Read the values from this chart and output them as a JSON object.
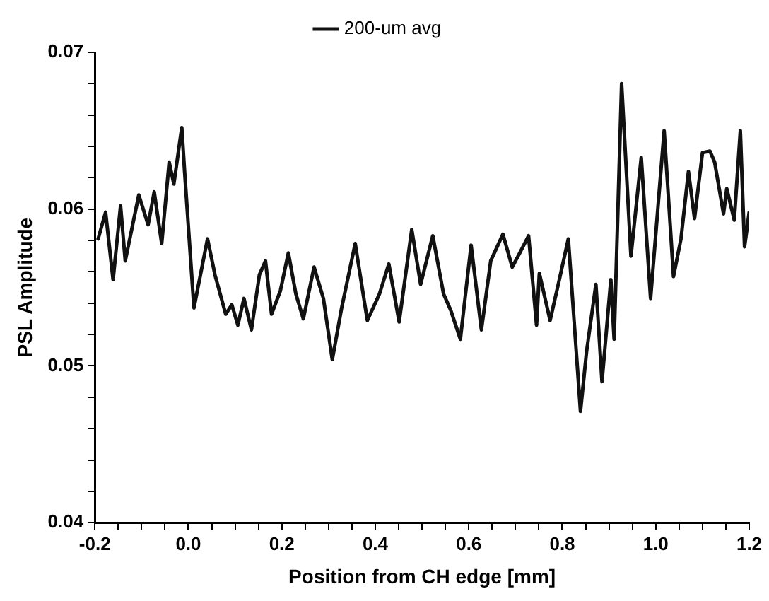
{
  "chart_data": {
    "type": "line",
    "xlabel": "Position from CH edge [mm]",
    "ylabel": "PSL Amplitude",
    "xlim": [
      -0.2,
      1.2
    ],
    "ylim": [
      0.04,
      0.07
    ],
    "xticks": [
      -0.2,
      {
        "value": -0.15,
        "label": null
      },
      {
        "value": -0.1,
        "label": null
      },
      {
        "value": -0.05,
        "label": null
      },
      {
        "value": 0,
        "label": "0.0"
      },
      {
        "value": 0.05,
        "label": null
      },
      {
        "value": 0.1,
        "label": null
      },
      {
        "value": 0.15,
        "label": null
      },
      0.2,
      {
        "value": 0.25,
        "label": null
      },
      {
        "value": 0.3,
        "label": null
      },
      {
        "value": 0.35,
        "label": null
      },
      0.4,
      {
        "value": 0.45,
        "label": null
      },
      {
        "value": 0.5,
        "label": null
      },
      {
        "value": 0.55,
        "label": null
      },
      0.6,
      {
        "value": 0.65,
        "label": null
      },
      {
        "value": 0.7,
        "label": null
      },
      {
        "value": 0.75,
        "label": null
      },
      0.8,
      {
        "value": 0.85,
        "label": null
      },
      {
        "value": 0.9,
        "label": null
      },
      {
        "value": 0.95,
        "label": null
      },
      {
        "value": 1,
        "label": "1.0"
      },
      {
        "value": 1.05,
        "label": null
      },
      {
        "value": 1.1,
        "label": null
      },
      {
        "value": 1.15,
        "label": null
      },
      1.2
    ],
    "yticks": [
      0.04,
      {
        "value": 0.042,
        "label": null
      },
      {
        "value": 0.044,
        "label": null
      },
      {
        "value": 0.046,
        "label": null
      },
      {
        "value": 0.048,
        "label": null
      },
      0.05,
      {
        "value": 0.052,
        "label": null
      },
      {
        "value": 0.054,
        "label": null
      },
      {
        "value": 0.056,
        "label": null
      },
      {
        "value": 0.058,
        "label": null
      },
      0.06,
      {
        "value": 0.062,
        "label": null
      },
      {
        "value": 0.064,
        "label": null
      },
      {
        "value": 0.066,
        "label": null
      },
      {
        "value": 0.068,
        "label": null
      },
      0.07
    ],
    "grid": false,
    "legend": "top",
    "marker": "none",
    "line_style": "solid",
    "x": [
      -0.193,
      -0.177,
      -0.161,
      -0.145,
      -0.135,
      -0.106,
      -0.086,
      -0.073,
      -0.057,
      -0.041,
      -0.031,
      -0.014,
      -0.008,
      0.012,
      0.041,
      0.057,
      0.08,
      0.093,
      0.106,
      0.119,
      0.135,
      0.152,
      0.165,
      0.178,
      0.197,
      0.214,
      0.23,
      0.246,
      0.269,
      0.289,
      0.308,
      0.328,
      0.357,
      0.383,
      0.409,
      0.429,
      0.451,
      0.478,
      0.497,
      0.523,
      0.546,
      0.562,
      0.582,
      0.605,
      0.627,
      0.647,
      0.673,
      0.693,
      0.709,
      0.728,
      0.745,
      0.751,
      0.774,
      0.793,
      0.813,
      0.839,
      0.852,
      0.872,
      0.885,
      0.904,
      0.911,
      0.927,
      0.947,
      0.969,
      0.989,
      1.018,
      1.038,
      1.054,
      1.07,
      1.083,
      1.1,
      1.116,
      1.126,
      1.145,
      1.152,
      1.168,
      1.181,
      1.19,
      1.2
    ],
    "series": [
      {
        "name": "200-um avg",
        "color": "#111111",
        "values": [
          0.0581,
          0.0598,
          0.0555,
          0.0602,
          0.0567,
          0.0609,
          0.059,
          0.0611,
          0.0578,
          0.063,
          0.0616,
          0.0652,
          0.0624,
          0.0537,
          0.0581,
          0.0558,
          0.0533,
          0.0539,
          0.0526,
          0.0543,
          0.0523,
          0.0558,
          0.0567,
          0.0533,
          0.0548,
          0.0572,
          0.0546,
          0.053,
          0.0563,
          0.0543,
          0.0504,
          0.0537,
          0.0578,
          0.0529,
          0.0546,
          0.0565,
          0.0528,
          0.0587,
          0.0552,
          0.0583,
          0.0546,
          0.0535,
          0.0517,
          0.0577,
          0.0523,
          0.0567,
          0.0584,
          0.0563,
          0.0572,
          0.0583,
          0.0526,
          0.0559,
          0.0529,
          0.0554,
          0.0581,
          0.0471,
          0.0509,
          0.0552,
          0.049,
          0.0555,
          0.0517,
          0.068,
          0.057,
          0.0633,
          0.0543,
          0.065,
          0.0557,
          0.0581,
          0.0624,
          0.0594,
          0.0636,
          0.0637,
          0.063,
          0.0597,
          0.0613,
          0.0593,
          0.065,
          0.0576,
          0.0598
        ]
      }
    ]
  }
}
